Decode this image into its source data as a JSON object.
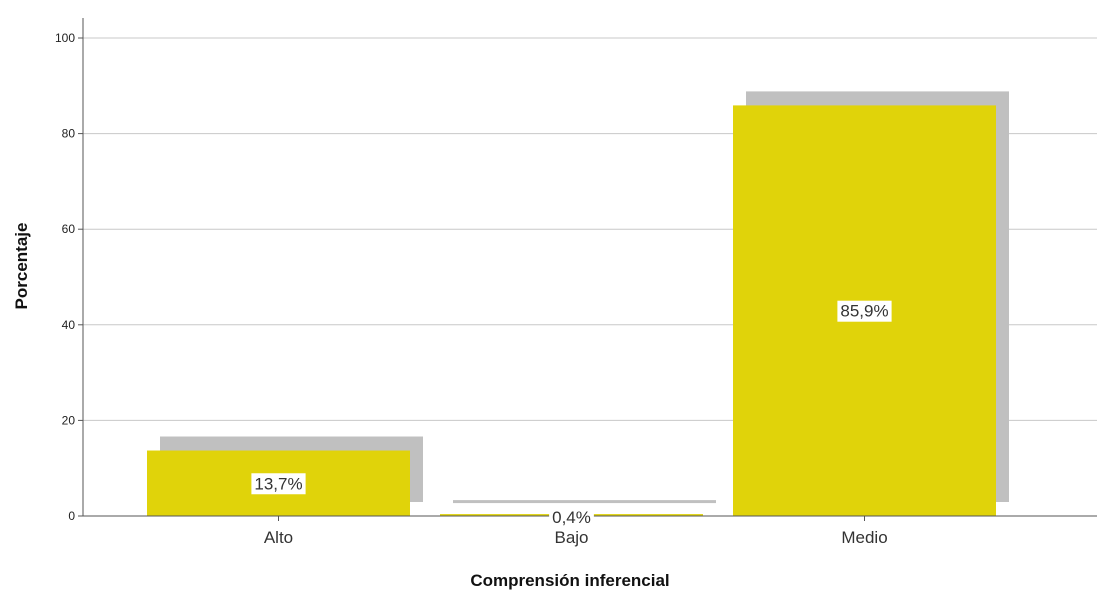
{
  "chart_data": {
    "type": "bar",
    "title": "",
    "xlabel": "Comprensión inferencial",
    "ylabel": "Porcentaje",
    "categories": [
      "Alto",
      "Bajo",
      "Medio"
    ],
    "values": [
      13.7,
      0.4,
      85.9
    ],
    "data_labels": [
      "13,7%",
      "0,4%",
      "85,9%"
    ],
    "ylim": [
      0,
      100
    ],
    "yticks": [
      0,
      20,
      40,
      60,
      80,
      100
    ],
    "grid": true,
    "bar_shadow": true,
    "colors": {
      "bar": "#e0d30a",
      "shadow": "#c0c0c0",
      "grid": "#c8c8c8",
      "axis": "#555555",
      "label_bg": "#ffffff"
    }
  }
}
